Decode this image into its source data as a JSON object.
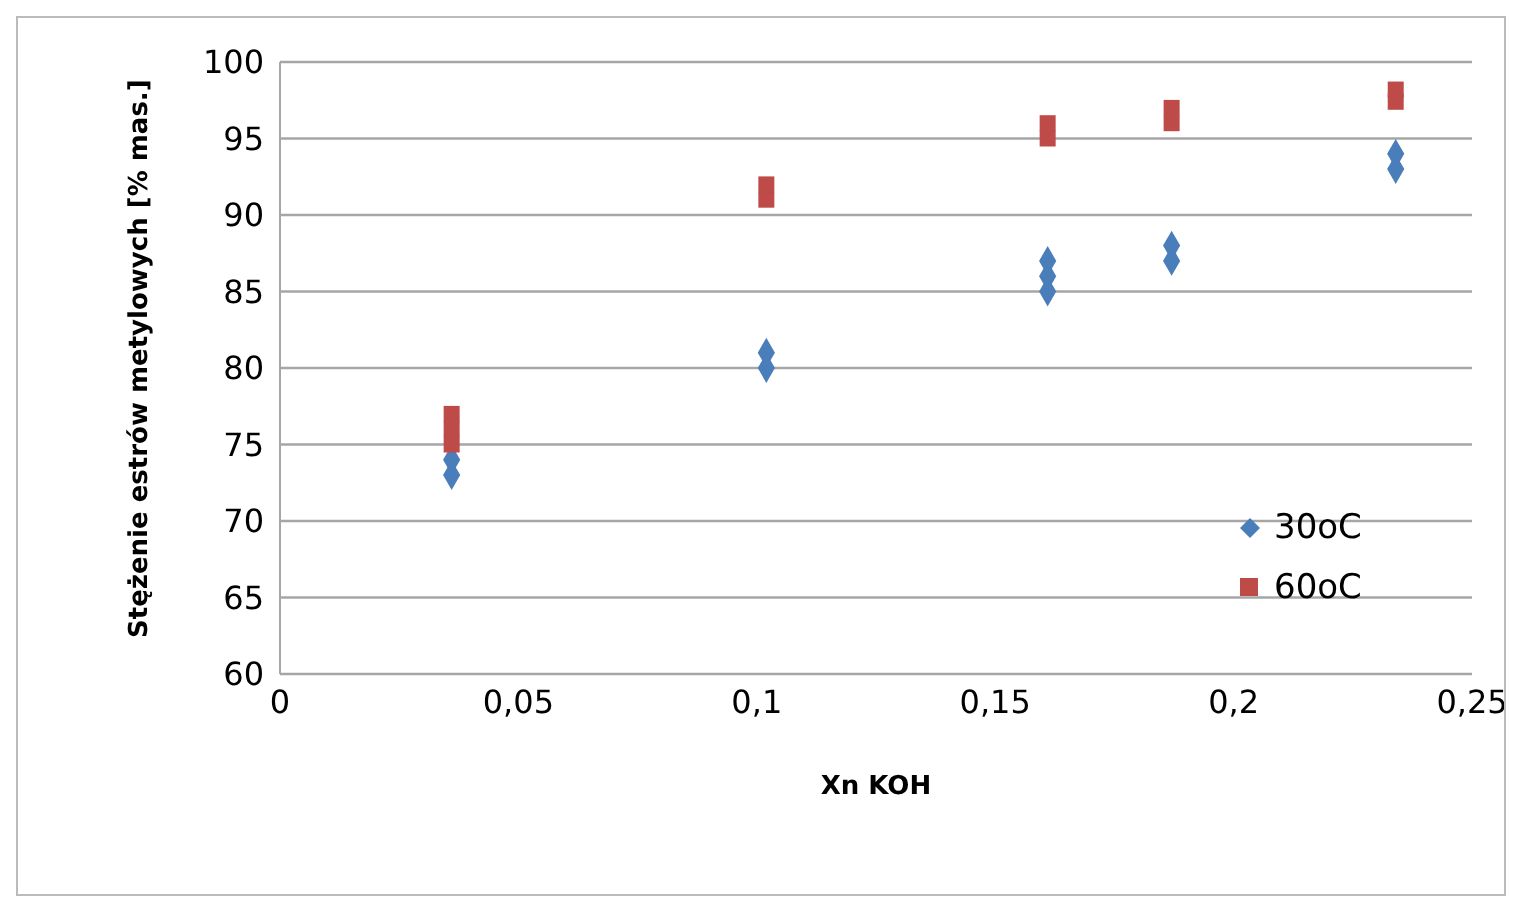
{
  "chart_data": {
    "type": "scatter",
    "xlabel": "Xn KOH",
    "ylabel": "Stężenie estrów metylowych [% mas.]",
    "xlim": [
      0,
      0.25
    ],
    "xticks": [
      0,
      {
        "value": 0.05,
        "label": "0,05"
      },
      {
        "value": 0.1,
        "label": "0,1"
      },
      {
        "value": 0.15,
        "label": "0,15"
      },
      {
        "value": 0.2,
        "label": "0,2"
      },
      {
        "value": 0.25,
        "label": "0,25"
      }
    ],
    "ylim": [
      60,
      100
    ],
    "yticks": [
      60,
      65,
      70,
      75,
      80,
      85,
      90,
      95,
      100
    ],
    "grid": "y",
    "legend": "right",
    "series": [
      {
        "name": "30oC",
        "color": "#4a7ebb",
        "marker": "diamond",
        "x": [
          0.036,
          0.036,
          0.102,
          0.102,
          0.161,
          0.161,
          0.161,
          0.187,
          0.187,
          0.234,
          0.234
        ],
        "values": [
          73,
          74,
          80,
          81,
          85,
          86,
          87,
          87,
          88,
          93,
          94
        ]
      },
      {
        "name": "60oC",
        "color": "#be4b48",
        "marker": "square",
        "x": [
          0.036,
          0.036,
          0.036,
          0.102,
          0.102,
          0.161,
          0.161,
          0.187,
          0.187,
          0.234,
          0.234
        ],
        "values": [
          75,
          76,
          77,
          91,
          92,
          95,
          96,
          96,
          97,
          97.4,
          98.2
        ]
      }
    ]
  }
}
